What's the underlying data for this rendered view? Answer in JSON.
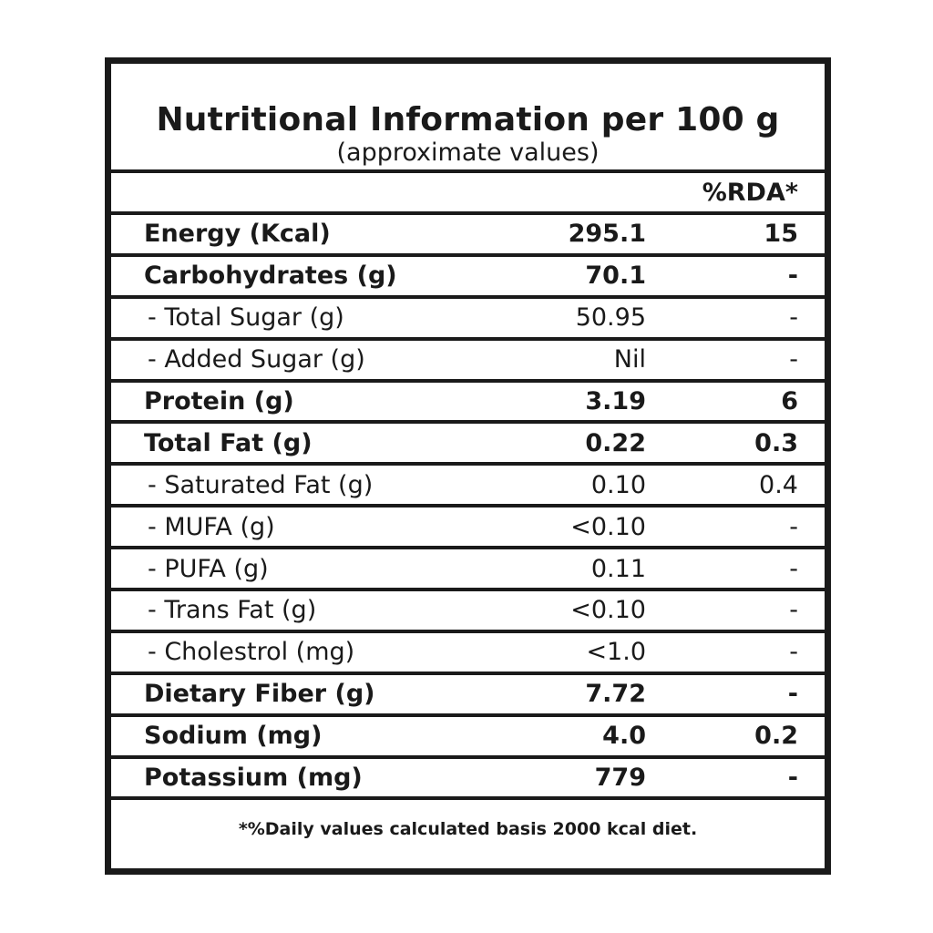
{
  "title": "Nutritional Information per 100 g",
  "subtitle": "(approximate values)",
  "rda_header": "%RDA*",
  "rows": [
    {
      "label": "Energy (Kcal)",
      "value": "295.1",
      "rda": "15"
    },
    {
      "label": "Carbohydrates (g)",
      "value": "70.1",
      "rda": "-"
    },
    {
      "label": "- Total Sugar (g)",
      "value": "50.95",
      "rda": "-"
    },
    {
      "label": "- Added Sugar (g)",
      "value": "Nil",
      "rda": "-"
    },
    {
      "label": "Protein (g)",
      "value": "3.19",
      "rda": "6"
    },
    {
      "label": "Total Fat (g)",
      "value": "0.22",
      "rda": "0.3"
    },
    {
      "label": "- Saturated Fat (g)",
      "value": "0.10",
      "rda": "0.4"
    },
    {
      "label": "- MUFA (g)",
      "value": "<0.10",
      "rda": "-"
    },
    {
      "label": "- PUFA (g)",
      "value": "0.11",
      "rda": "-"
    },
    {
      "label": "- Trans Fat (g)",
      "value": "<0.10",
      "rda": "-"
    },
    {
      "label": "- Cholestrol (mg)",
      "value": "<1.0",
      "rda": "-"
    },
    {
      "label": "Dietary Fiber (g)",
      "value": "7.72",
      "rda": "-"
    },
    {
      "label": "Sodium (mg)",
      "value": "4.0",
      "rda": "0.2"
    },
    {
      "label": "Potassium (mg)",
      "value": "779",
      "rda": "-"
    }
  ],
  "footnote": "*%Daily values calculated basis 2000 kcal diet."
}
